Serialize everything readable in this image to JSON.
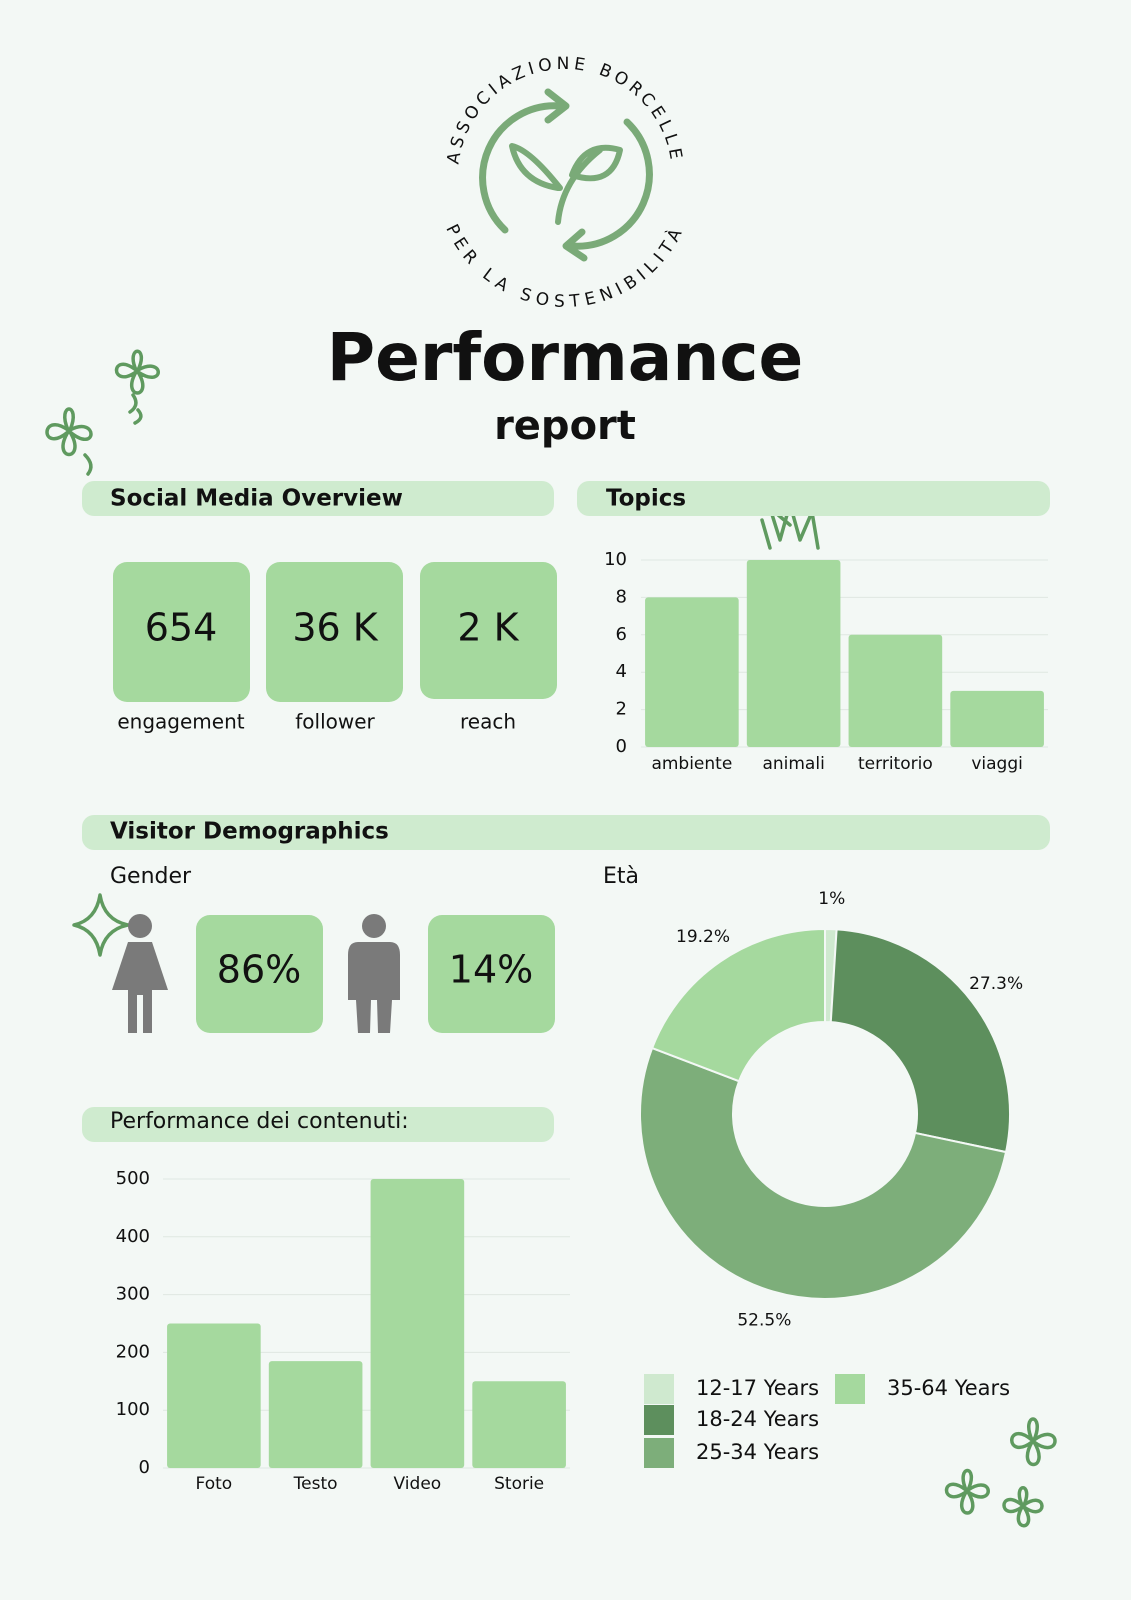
{
  "logo": {
    "top_text": "ASSOCIAZIONE BORCELLE",
    "bottom_text": "PER LA SOSTENIBILITÀ"
  },
  "header": {
    "title": "Performance",
    "subtitle": "report"
  },
  "social_media": {
    "heading": "Social Media Overview",
    "stats": [
      {
        "value": "654",
        "label": "engagement"
      },
      {
        "value": "36 K",
        "label": "follower"
      },
      {
        "value": "2 K",
        "label": "reach"
      }
    ]
  },
  "demographics": {
    "heading": "Visitor Demographics",
    "gender_heading": "Gender",
    "age_heading": "Età",
    "female": "86%",
    "male": "14%"
  },
  "contents_heading": "Performance dei contenuti:",
  "chart_data": [
    {
      "type": "bar",
      "title": "Topics",
      "categories": [
        "ambiente",
        "animali",
        "territorio",
        "viaggi"
      ],
      "values": [
        8,
        10,
        6,
        3
      ],
      "color": "#a5d99e",
      "ylim": [
        0,
        10
      ],
      "yticks": [
        0,
        2,
        4,
        6,
        8,
        10
      ],
      "grid": true
    },
    {
      "type": "bar",
      "categories": [
        "Foto",
        "Testo",
        "Video",
        "Storie"
      ],
      "values": [
        250,
        185,
        500,
        150
      ],
      "color": "#a5d99e",
      "ylim": [
        0,
        500
      ],
      "yticks": [
        0,
        100,
        200,
        300,
        400,
        500
      ],
      "grid": true
    },
    {
      "type": "donut",
      "categories": [
        "12-17 Years",
        "18-24 Years",
        "25-34 Years",
        "35-64 Years"
      ],
      "values": [
        1,
        27.3,
        52.5,
        19.2
      ],
      "value_labels": [
        "1%",
        "27.3%",
        "52.5%",
        "19.2%"
      ],
      "colors": [
        "#cfe9cf",
        "#5d8f5d",
        "#7dae7a",
        "#a5d99e"
      ]
    }
  ]
}
